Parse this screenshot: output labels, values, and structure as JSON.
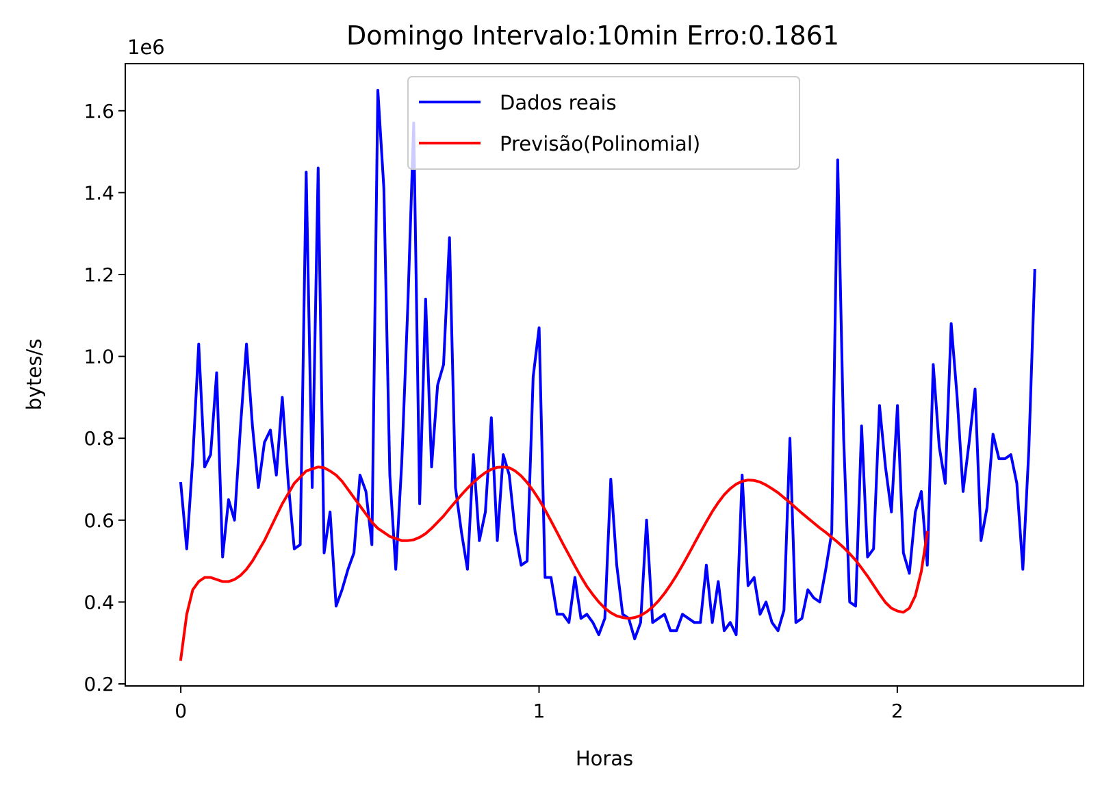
{
  "chart_data": {
    "type": "line",
    "title": "Domingo Intervalo:10min Erro:0.1861",
    "xlabel": "Horas",
    "ylabel": "bytes/s",
    "y_multiplier_label": "1e6",
    "xlim": [
      -0.155,
      2.52
    ],
    "ylim": [
      0.195,
      1.715
    ],
    "x_ticks": [
      0,
      1,
      2
    ],
    "x_tick_labels": [
      "0",
      "1",
      "2"
    ],
    "y_ticks": [
      0.2,
      0.4,
      0.6,
      0.8,
      1.0,
      1.2,
      1.4,
      1.6
    ],
    "y_tick_labels": [
      "0.2",
      "0.4",
      "0.6",
      "0.8",
      "1.0",
      "1.2",
      "1.4",
      "1.6"
    ],
    "grid": false,
    "legend_position": "upper-center",
    "series": [
      {
        "name": "Dados reais",
        "color": "#0000ff",
        "x_step": 0.01667,
        "values": [
          0.69,
          0.53,
          0.75,
          1.03,
          0.73,
          0.76,
          0.96,
          0.51,
          0.65,
          0.6,
          0.83,
          1.03,
          0.83,
          0.68,
          0.79,
          0.82,
          0.71,
          0.9,
          0.69,
          0.53,
          0.54,
          1.45,
          0.68,
          1.46,
          0.52,
          0.62,
          0.39,
          0.43,
          0.48,
          0.52,
          0.71,
          0.67,
          0.54,
          1.65,
          1.41,
          0.71,
          0.48,
          0.74,
          1.12,
          1.57,
          0.64,
          1.14,
          0.73,
          0.93,
          0.98,
          1.29,
          0.68,
          0.57,
          0.48,
          0.76,
          0.55,
          0.62,
          0.85,
          0.55,
          0.76,
          0.71,
          0.57,
          0.49,
          0.5,
          0.95,
          1.07,
          0.46,
          0.46,
          0.37,
          0.37,
          0.35,
          0.46,
          0.36,
          0.37,
          0.35,
          0.32,
          0.36,
          0.7,
          0.49,
          0.37,
          0.36,
          0.31,
          0.35,
          0.6,
          0.35,
          0.36,
          0.37,
          0.33,
          0.33,
          0.37,
          0.36,
          0.35,
          0.35,
          0.49,
          0.35,
          0.45,
          0.33,
          0.35,
          0.32,
          0.71,
          0.44,
          0.46,
          0.37,
          0.4,
          0.35,
          0.33,
          0.38,
          0.8,
          0.35,
          0.36,
          0.43,
          0.41,
          0.4,
          0.48,
          0.57,
          1.48,
          0.8,
          0.4,
          0.39,
          0.83,
          0.51,
          0.53,
          0.88,
          0.73,
          0.62,
          0.88,
          0.52,
          0.47,
          0.62,
          0.67,
          0.49,
          0.98,
          0.78,
          0.69,
          1.08,
          0.9,
          0.67,
          0.79,
          0.92,
          0.55,
          0.63,
          0.81,
          0.75,
          0.75,
          0.76,
          0.69,
          0.48,
          0.77,
          1.21
        ]
      },
      {
        "name": "Previsão(Polinomial)",
        "color": "#ff0000",
        "x_step": 0.01667,
        "values": [
          0.26,
          0.37,
          0.43,
          0.45,
          0.46,
          0.46,
          0.455,
          0.45,
          0.45,
          0.455,
          0.465,
          0.48,
          0.5,
          0.525,
          0.55,
          0.58,
          0.61,
          0.64,
          0.665,
          0.69,
          0.705,
          0.72,
          0.725,
          0.73,
          0.728,
          0.72,
          0.71,
          0.695,
          0.675,
          0.655,
          0.635,
          0.615,
          0.595,
          0.58,
          0.57,
          0.56,
          0.555,
          0.55,
          0.55,
          0.552,
          0.558,
          0.567,
          0.58,
          0.595,
          0.61,
          0.628,
          0.645,
          0.662,
          0.678,
          0.692,
          0.705,
          0.716,
          0.724,
          0.729,
          0.73,
          0.728,
          0.72,
          0.708,
          0.692,
          0.672,
          0.65,
          0.625,
          0.598,
          0.57,
          0.542,
          0.515,
          0.488,
          0.462,
          0.438,
          0.418,
          0.4,
          0.385,
          0.374,
          0.366,
          0.362,
          0.36,
          0.362,
          0.367,
          0.376,
          0.388,
          0.403,
          0.421,
          0.442,
          0.465,
          0.49,
          0.516,
          0.543,
          0.57,
          0.596,
          0.621,
          0.643,
          0.662,
          0.677,
          0.688,
          0.695,
          0.698,
          0.697,
          0.693,
          0.686,
          0.677,
          0.667,
          0.655,
          0.643,
          0.63,
          0.617,
          0.605,
          0.593,
          0.581,
          0.57,
          0.558,
          0.546,
          0.533,
          0.518,
          0.502,
          0.483,
          0.463,
          0.441,
          0.419,
          0.399,
          0.385,
          0.378,
          0.375,
          0.385,
          0.415,
          0.475,
          0.57
        ]
      }
    ]
  }
}
